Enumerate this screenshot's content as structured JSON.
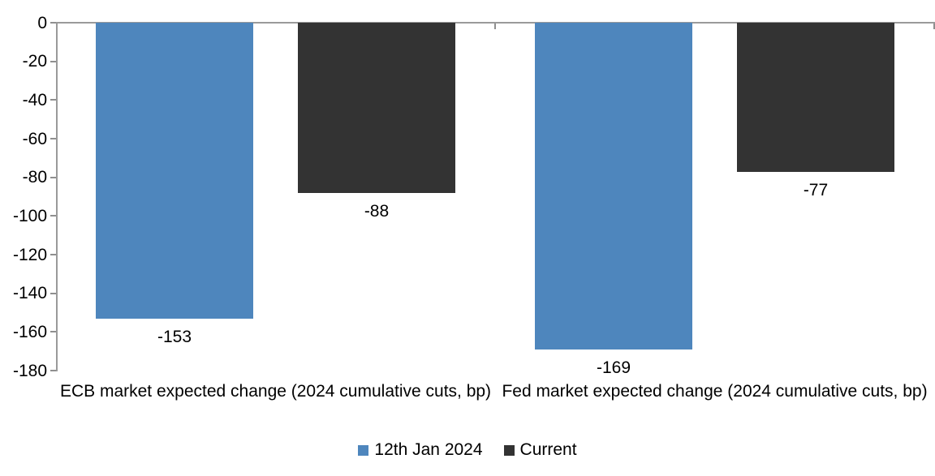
{
  "chart_data": {
    "type": "bar",
    "title": "",
    "categories": [
      "ECB market expected change (2024 cumulative cuts, bp)",
      "Fed market expected change (2024 cumulative cuts, bp)"
    ],
    "series": [
      {
        "name": "12th Jan 2024",
        "color": "#4E86BD",
        "values": [
          -153,
          -169
        ]
      },
      {
        "name": "Current",
        "color": "#333333",
        "values": [
          -88,
          -77
        ]
      }
    ],
    "data_labels": [
      [
        "-153",
        "-169"
      ],
      [
        "-88",
        "-77"
      ]
    ],
    "ylim": [
      -180,
      0
    ],
    "ytick_step": 20,
    "ytick_labels": [
      "0",
      "-20",
      "-40",
      "-60",
      "-80",
      "-100",
      "-120",
      "-140",
      "-160",
      "-180"
    ],
    "grid": false,
    "show_data_labels": true,
    "legend_position": "bottom",
    "axis_color": "#9a9a9a",
    "text_color": "#000000",
    "background_color": "#ffffff"
  }
}
